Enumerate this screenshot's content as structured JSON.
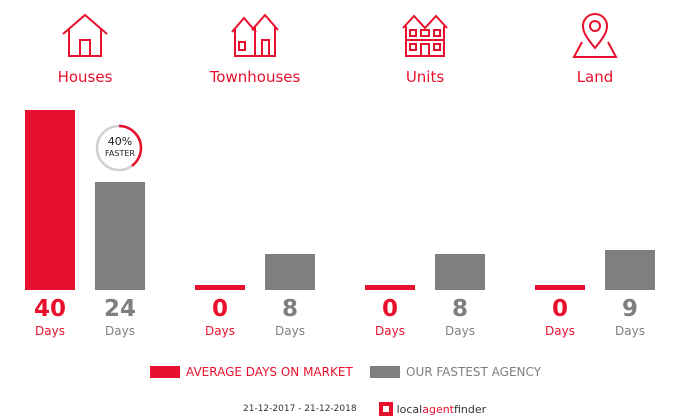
{
  "chart_data": {
    "type": "bar",
    "categories": [
      "Houses",
      "Townhouses",
      "Units",
      "Land"
    ],
    "series": [
      {
        "name": "AVERAGE DAYS ON MARKET",
        "values": [
          40,
          0,
          0,
          0
        ],
        "color": "#e8112d"
      },
      {
        "name": "OUR FASTEST AGENCY",
        "values": [
          24,
          8,
          8,
          9
        ],
        "color": "#7f7f7f"
      }
    ],
    "unit_label": "Days",
    "legend_position": "bottom",
    "grid": false,
    "annotation": {
      "percent": "40%",
      "text": "FASTER",
      "fraction": 0.4
    }
  },
  "icons": [
    "house-icon",
    "townhouse-icon",
    "units-icon",
    "land-pin-icon"
  ],
  "footer": {
    "date_range": "21-12-2017 - 21-12-2018",
    "logo_local": "local",
    "logo_agent": "agent",
    "logo_finder": "finder"
  }
}
